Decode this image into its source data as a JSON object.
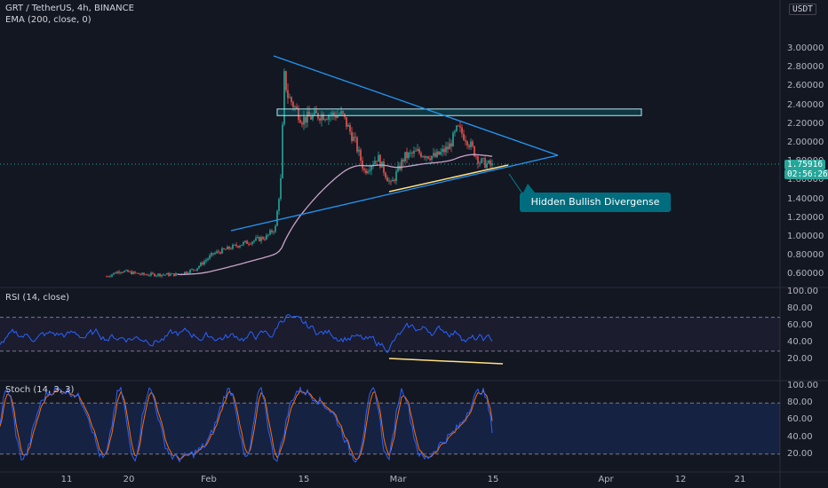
{
  "header": {
    "symbol_title": "GRT / TetherUS, 4h, BINANCE",
    "ema_label": "EMA (200, close, 0)",
    "currency": "USDT"
  },
  "price_pane": {
    "y_ticks": [
      "3.00000",
      "2.80000",
      "2.60000",
      "2.40000",
      "2.20000",
      "2.00000",
      "1.80000",
      "1.60000",
      "1.40000",
      "1.20000",
      "1.00000",
      "0.80000",
      "0.60000"
    ],
    "last_price": "1.75916",
    "countdown": "02:56:26",
    "ema_value": "1.66000",
    "resistance_zone": {
      "low": 2.29,
      "high": 2.36
    },
    "candle_up_color": "#26a69a",
    "candle_down_color": "#ef5350",
    "ema_color": "#c9a3c8",
    "trendline_color": "#2196f3",
    "divergence_line_color": "#ffe082"
  },
  "annotation": {
    "text": "Hidden Bullish Divergense",
    "color": "#006d7e"
  },
  "rsi_pane": {
    "title": "RSI (14, close)",
    "y_ticks": [
      "100.00",
      "80.00",
      "60.00",
      "40.00",
      "20.00"
    ],
    "upper_band": 70,
    "lower_band": 30,
    "line_color": "#2962ff",
    "band_fill": "#7e57c2"
  },
  "stoch_pane": {
    "title": "Stoch (14, 3, 3)",
    "y_ticks": [
      "100.00",
      "80.00",
      "60.00",
      "40.00",
      "20.00"
    ],
    "upper_band": 80,
    "lower_band": 20,
    "k_color": "#2962ff",
    "d_color": "#ff6d00",
    "band_fill": "#2962ff"
  },
  "x_axis": {
    "ticks": [
      "11",
      "20",
      "Feb",
      "15",
      "Mar",
      "15",
      "Apr",
      "12",
      "21"
    ]
  }
}
